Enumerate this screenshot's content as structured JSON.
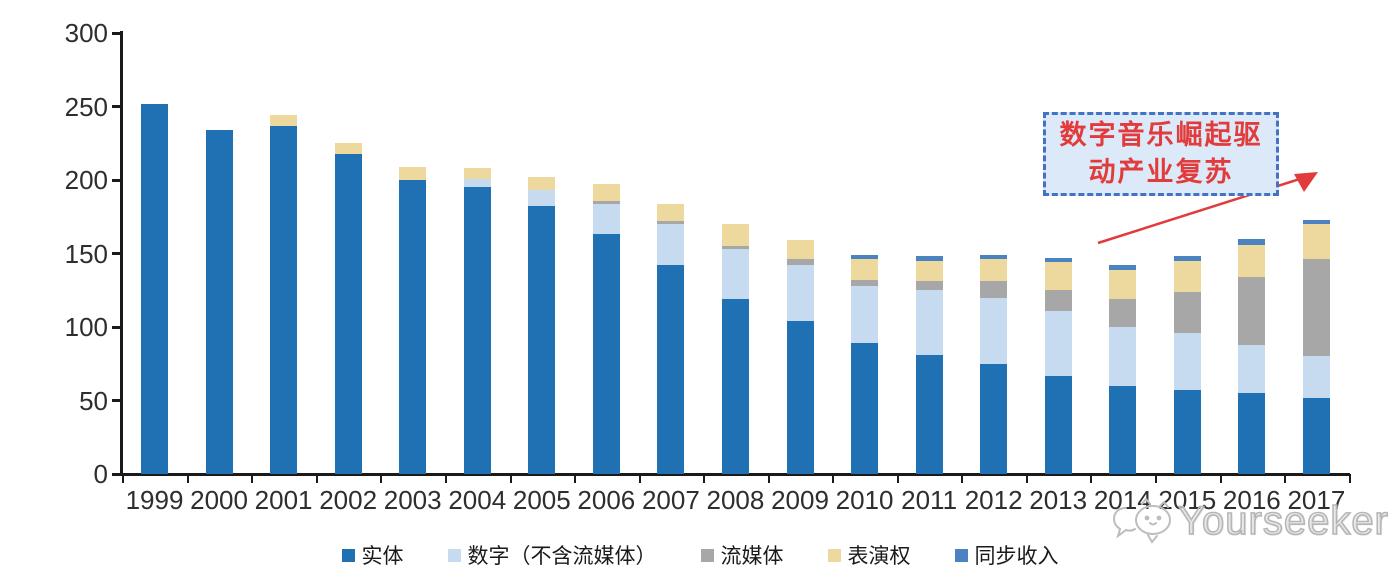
{
  "chart_data": {
    "type": "bar",
    "stacked": true,
    "title": "",
    "xlabel": "",
    "ylabel": "",
    "ylim": [
      0,
      300
    ],
    "yticks": [
      0,
      50,
      100,
      150,
      200,
      250,
      300
    ],
    "grid": false,
    "legend_position": "bottom",
    "categories": [
      "1999",
      "2000",
      "2001",
      "2002",
      "2003",
      "2004",
      "2005",
      "2006",
      "2007",
      "2008",
      "2009",
      "2010",
      "2011",
      "2012",
      "2013",
      "2014",
      "2015",
      "2016",
      "2017"
    ],
    "series": [
      {
        "name": "实体",
        "key": "physical",
        "color": "#2070b4",
        "values": [
          252,
          234,
          237,
          218,
          200,
          195,
          182,
          163,
          142,
          119,
          104,
          89,
          81,
          75,
          67,
          60,
          57,
          55,
          52
        ]
      },
      {
        "name": "数字（不含流媒体）",
        "key": "digital-excl-streaming",
        "color": "#c7dbf0",
        "values": [
          0,
          0,
          0,
          0,
          0,
          6,
          11,
          21,
          28,
          34,
          38,
          39,
          44,
          45,
          44,
          40,
          39,
          33,
          28
        ]
      },
      {
        "name": "流媒体",
        "key": "streaming",
        "color": "#a7a7a7",
        "values": [
          0,
          0,
          0,
          0,
          0,
          0,
          0,
          2,
          2,
          2,
          4,
          4,
          6,
          11,
          14,
          19,
          28,
          46,
          66
        ]
      },
      {
        "name": "表演权",
        "key": "performance-rights",
        "color": "#edd89e",
        "values": [
          0,
          0,
          7,
          7,
          9,
          7,
          9,
          11,
          12,
          15,
          13,
          14,
          14,
          15,
          19,
          20,
          21,
          22,
          24
        ]
      },
      {
        "name": "同步收入",
        "key": "sync-revenue",
        "color": "#4a82c2",
        "values": [
          0,
          0,
          0,
          0,
          0,
          0,
          0,
          0,
          0,
          0,
          0,
          3,
          3,
          3,
          3,
          3,
          3,
          4,
          3
        ]
      }
    ]
  },
  "annotation": {
    "line1": "数字音乐崛起驱",
    "line2": "动产业复苏",
    "full_text": "数字音乐崛起驱动产业复苏",
    "box_fill": "#dce9f8",
    "border_color": "#4472c4",
    "text_color": "#e23b3b",
    "arrow_color": "#e23b3b"
  },
  "watermark": {
    "text": "Yourseeker"
  },
  "colors": {
    "axis": "#1a1a1a",
    "axis_text": "#2e2e2e",
    "background": "#ffffff"
  }
}
